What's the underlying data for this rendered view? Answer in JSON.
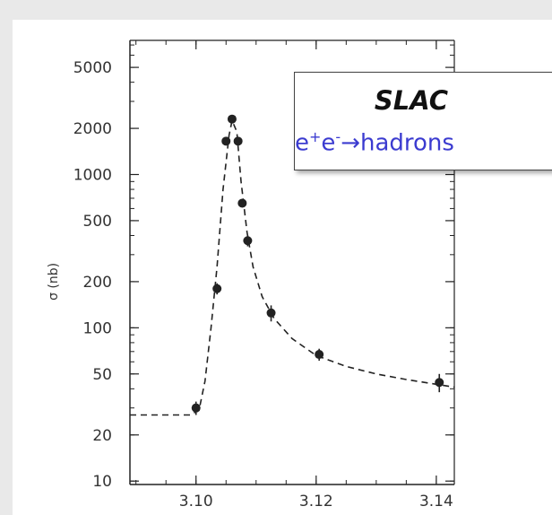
{
  "chart_data": {
    "type": "scatter",
    "title": "",
    "xlabel": "",
    "ylabel": "σ (nb)",
    "x_ticks": [
      "3.10",
      "3.12",
      "3.14"
    ],
    "x_tick_values": [
      3.1,
      3.12,
      3.14
    ],
    "y_ticks": [
      "10",
      "20",
      "50",
      "100",
      "200",
      "500",
      "1000",
      "2000",
      "5000"
    ],
    "y_tick_values": [
      10,
      20,
      50,
      100,
      200,
      500,
      1000,
      2000,
      5000
    ],
    "y_scale": "log",
    "xlim": [
      3.089,
      3.143
    ],
    "ylim": [
      9.5,
      7500
    ],
    "series": [
      {
        "points": [
          {
            "x": 3.1,
            "y": 30,
            "err": 3
          },
          {
            "x": 3.1035,
            "y": 180,
            "err": 15
          },
          {
            "x": 3.105,
            "y": 1650,
            "err": 90
          },
          {
            "x": 3.106,
            "y": 2300,
            "err": 110
          },
          {
            "x": 3.107,
            "y": 1650,
            "err": 90
          },
          {
            "x": 3.1077,
            "y": 650,
            "err": 35
          },
          {
            "x": 3.1086,
            "y": 370,
            "err": 30
          },
          {
            "x": 3.1125,
            "y": 125,
            "err": 15
          },
          {
            "x": 3.1205,
            "y": 67,
            "err": 6
          },
          {
            "x": 3.1405,
            "y": 44,
            "err": 6
          }
        ]
      }
    ],
    "fit_curve": [
      [
        3.089,
        27
      ],
      [
        3.096,
        27
      ],
      [
        3.099,
        27
      ],
      [
        3.1005,
        29
      ],
      [
        3.1015,
        45
      ],
      [
        3.1025,
        100
      ],
      [
        3.1035,
        250
      ],
      [
        3.1045,
        800
      ],
      [
        3.1055,
        1800
      ],
      [
        3.106,
        2250
      ],
      [
        3.1068,
        1900
      ],
      [
        3.1075,
        900
      ],
      [
        3.1085,
        420
      ],
      [
        3.1095,
        250
      ],
      [
        3.111,
        160
      ],
      [
        3.113,
        115
      ],
      [
        3.116,
        85
      ],
      [
        3.12,
        66
      ],
      [
        3.125,
        56
      ],
      [
        3.13,
        50
      ],
      [
        3.135,
        46
      ],
      [
        3.143,
        41
      ]
    ],
    "legend": {
      "title": "SLAC",
      "reaction_main": "e",
      "reaction_sup1": "+",
      "reaction_mid": "e",
      "reaction_sup2": "-",
      "reaction_end": "→hadrons"
    },
    "grid": false,
    "colors": {
      "ink": "#222222",
      "reaction_text": "#3b3bd0",
      "background": "#e9e9e9"
    }
  }
}
